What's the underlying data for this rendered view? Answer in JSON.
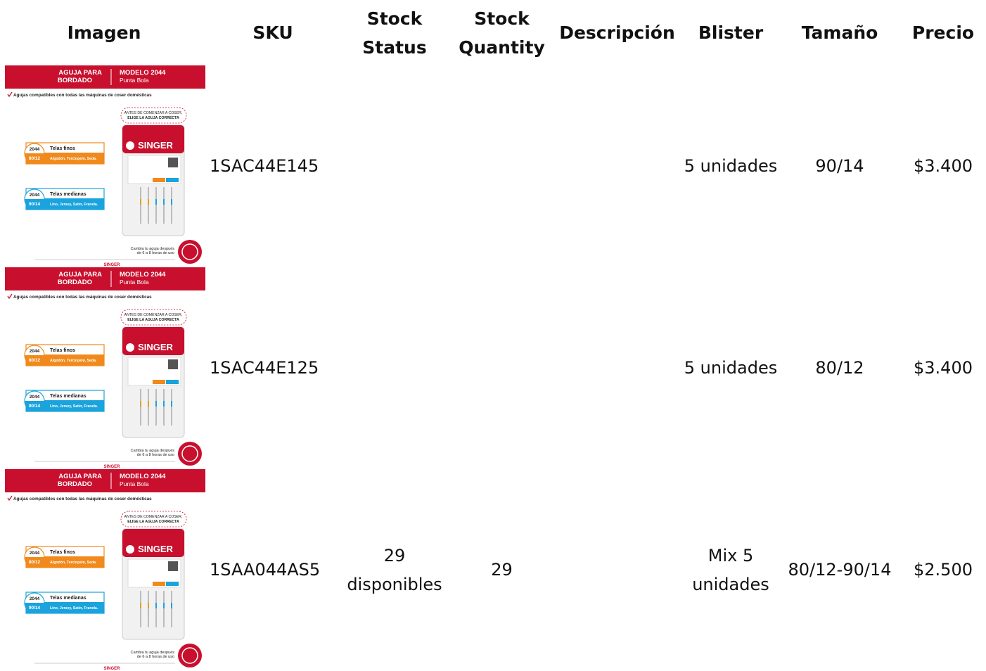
{
  "table": {
    "headers": {
      "image": "Imagen",
      "sku": "SKU",
      "stock_status": "Stock Status",
      "stock_quantity": "Stock Quantity",
      "description": "Descripción",
      "blister": "Blister",
      "size": "Tamaño",
      "price": "Precio"
    },
    "rows": [
      {
        "sku": "1SAC44E145",
        "blister": "5 unidades",
        "size": "90/14",
        "price": "$3.400"
      },
      {
        "sku": "1SAC44E125",
        "blister": "5 unidades",
        "size": "80/12",
        "price": "$3.400"
      },
      {
        "sku": "1SAA044AS5",
        "stock_status": "29 disponibles",
        "stock_quantity": "29",
        "blister": "Mix 5 unidades",
        "size": "80/12-90/14",
        "price": "$2.500"
      }
    ]
  },
  "product_image": {
    "type_1": "AGUJA PARA",
    "type_2": "BORDADO",
    "model": "MODELO 2044",
    "tip": "Punta Bola",
    "compat": "Agujas compatibles con todas las máquinas de coser domésticas",
    "labels": [
      {
        "code": "2044",
        "name": "Telas finos",
        "size": "80/12",
        "fabrics": "Algodón, Terciopelo, Seda.",
        "color": "#f08a1c"
      },
      {
        "code": "2044",
        "name": "Telas medianas",
        "size": "90/14",
        "fabrics": "Lino, Jersey, Satín, Franela.",
        "color": "#1aa3dc"
      }
    ],
    "notice_1": "ANTES DE COMENZAR A COSER,",
    "notice_2": "ELIGE LA AGUJA CORRECTA",
    "brand": "SINGER",
    "change_1": "Cambia tu aguja después",
    "change_2": "de 6 a 8 horas de uso"
  }
}
